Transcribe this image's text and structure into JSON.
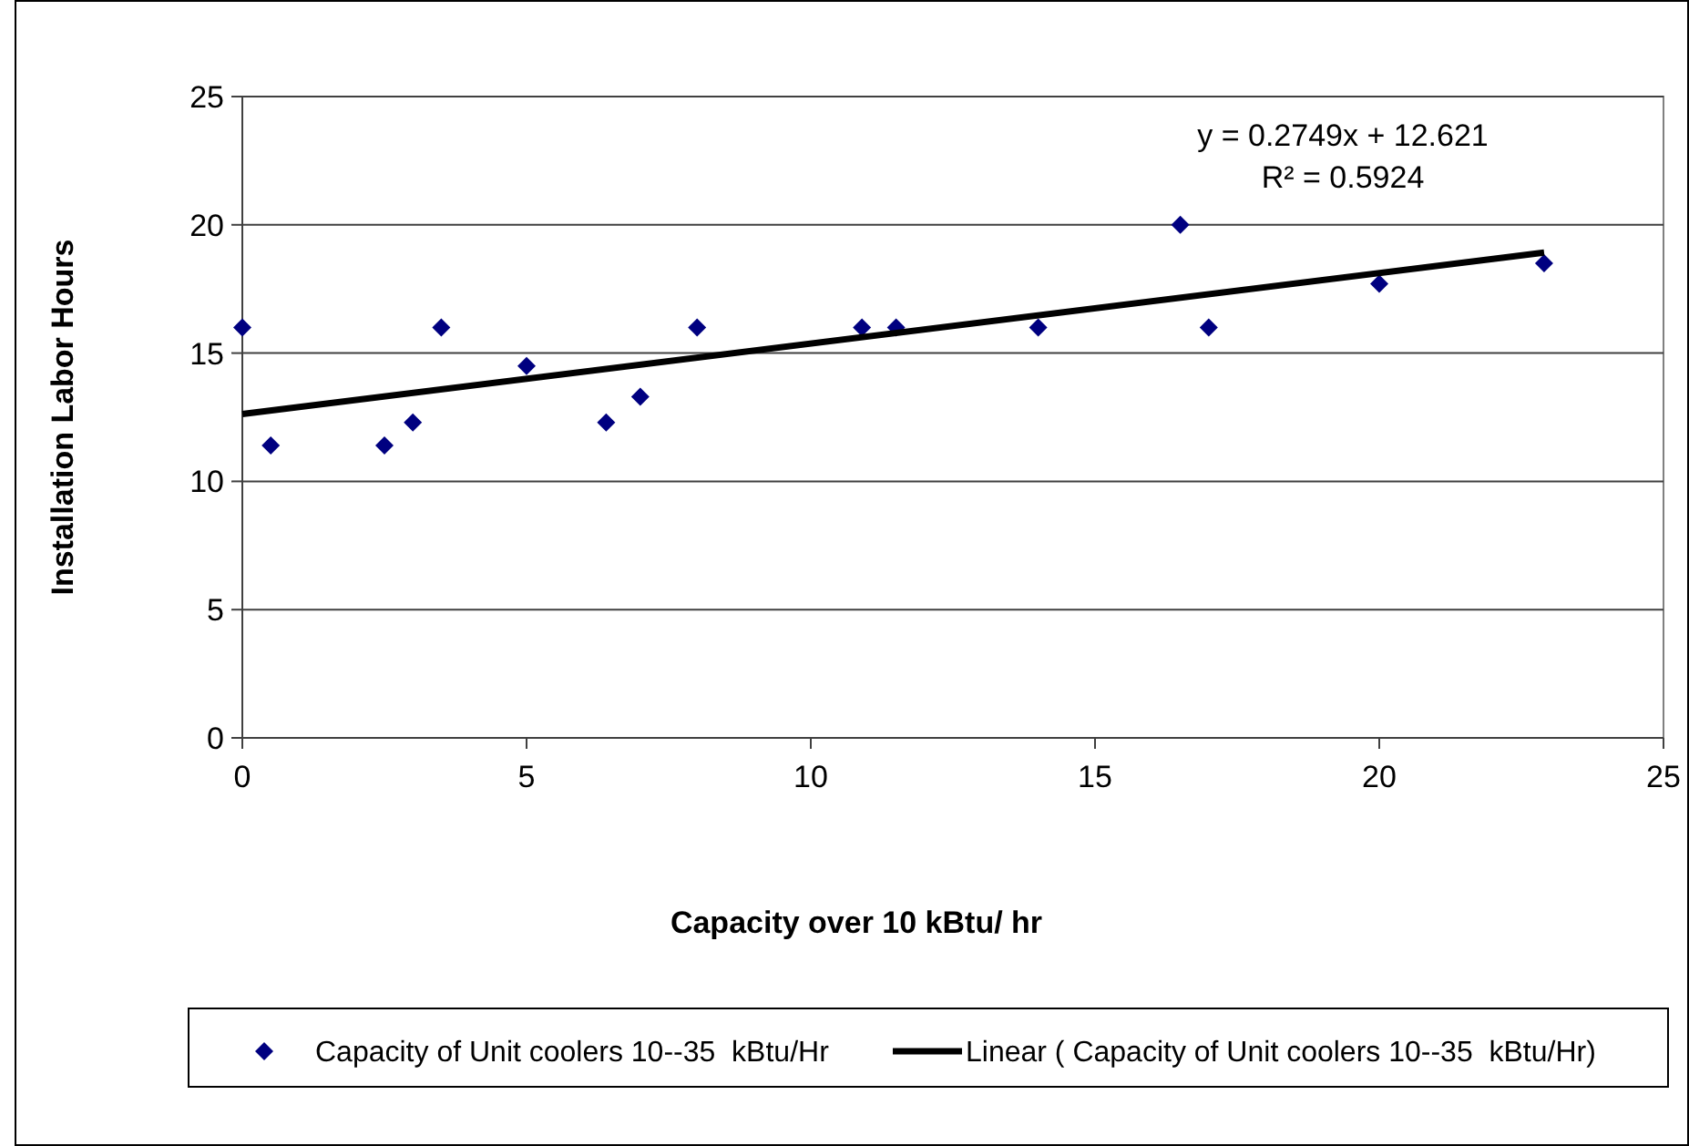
{
  "chart_data": {
    "type": "scatter",
    "xlabel": "Capacity over 10 kBtu/ hr",
    "ylabel": "Installation Labor Hours",
    "xlim": [
      0,
      25
    ],
    "ylim": [
      0,
      25
    ],
    "xticks": [
      0,
      5,
      10,
      15,
      20,
      25
    ],
    "yticks": [
      0,
      5,
      10,
      15,
      20,
      25
    ],
    "grid": "y",
    "legend": "bottom",
    "marker": "diamond",
    "series": [
      {
        "name": "Capacity of Unit coolers 10--35  kBtu/Hr",
        "color": "#000080",
        "x": [
          0,
          0.5,
          2.5,
          3,
          3.5,
          5,
          6.4,
          7,
          8,
          10.9,
          11.5,
          14,
          16.5,
          17,
          20,
          22.9
        ],
        "values": [
          16,
          11.4,
          11.4,
          12.3,
          16,
          14.5,
          12.3,
          13.3,
          16,
          16,
          16,
          16,
          20,
          16,
          17.7,
          18.5
        ]
      },
      {
        "name": "Linear ( Capacity of Unit coolers 10--35  kBtu/Hr)",
        "type": "line",
        "color": "#000000",
        "marker": "none",
        "line_style": "solid",
        "x": [
          0,
          22.9
        ],
        "values": [
          12.621,
          18.916
        ]
      }
    ],
    "annotations": [
      "y = 0.2749x + 12.621",
      "R² = 0.5924"
    ]
  }
}
